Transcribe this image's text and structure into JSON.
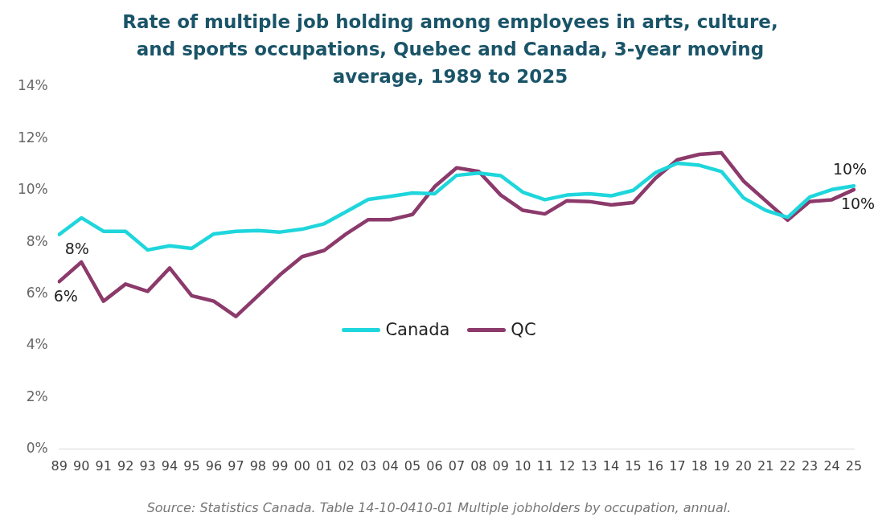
{
  "chart_data": {
    "type": "line",
    "title": "Rate of multiple job holding among employees in arts, culture, and sports occupations, Quebec and Canada, 3-year moving average, 1989 to 2025",
    "categories": [
      "89",
      "90",
      "91",
      "92",
      "93",
      "94",
      "95",
      "96",
      "97",
      "98",
      "99",
      "00",
      "01",
      "02",
      "03",
      "04",
      "05",
      "06",
      "07",
      "08",
      "09",
      "10",
      "11",
      "12",
      "13",
      "14",
      "15",
      "16",
      "17",
      "18",
      "19",
      "20",
      "21",
      "22",
      "23",
      "24",
      "25"
    ],
    "series": [
      {
        "name": "Canada",
        "color": "#1ed6dc",
        "values": [
          8.3,
          8.94,
          8.42,
          8.42,
          7.7,
          7.86,
          7.76,
          8.32,
          8.42,
          8.45,
          8.39,
          8.5,
          8.71,
          9.18,
          9.65,
          9.77,
          9.9,
          9.87,
          10.58,
          10.67,
          10.57,
          9.93,
          9.64,
          9.82,
          9.87,
          9.79,
          10.0,
          10.68,
          11.05,
          10.97,
          10.73,
          9.71,
          9.23,
          8.96,
          9.74,
          10.03,
          10.17
        ],
        "value_labels": [
          "8%",
          null,
          null,
          null,
          null,
          null,
          null,
          null,
          null,
          null,
          null,
          null,
          null,
          null,
          null,
          null,
          null,
          null,
          null,
          null,
          null,
          null,
          null,
          null,
          null,
          null,
          null,
          null,
          null,
          null,
          null,
          null,
          null,
          null,
          null,
          null,
          "10%"
        ]
      },
      {
        "name": "QC",
        "color": "#8b3a6b",
        "values": [
          6.48,
          7.23,
          5.72,
          6.38,
          6.1,
          7.0,
          5.93,
          5.72,
          5.13,
          5.93,
          6.74,
          7.44,
          7.68,
          8.32,
          8.87,
          8.87,
          9.07,
          10.14,
          10.87,
          10.73,
          9.82,
          9.23,
          9.09,
          9.6,
          9.57,
          9.44,
          9.53,
          10.46,
          11.18,
          11.39,
          11.45,
          10.36,
          9.6,
          8.85,
          9.57,
          9.64,
          10.03
        ],
        "value_labels": [
          "6%",
          null,
          null,
          null,
          null,
          null,
          null,
          null,
          null,
          null,
          null,
          null,
          null,
          null,
          null,
          null,
          null,
          null,
          null,
          null,
          null,
          null,
          null,
          null,
          null,
          null,
          null,
          null,
          null,
          null,
          null,
          null,
          null,
          null,
          null,
          null,
          "10%"
        ]
      }
    ],
    "ylim": [
      0,
      14
    ],
    "yticks": [
      {
        "value": 0,
        "label": "0%"
      },
      {
        "value": 2,
        "label": "2%"
      },
      {
        "value": 4,
        "label": "4%"
      },
      {
        "value": 6,
        "label": "6%"
      },
      {
        "value": 8,
        "label": "8%"
      },
      {
        "value": 10,
        "label": "10%"
      },
      {
        "value": 12,
        "label": "12%"
      },
      {
        "value": 14,
        "label": "14%"
      }
    ],
    "grid": false,
    "legend": "center",
    "marker": "none",
    "line_style": "solid",
    "annotations": [
      "Source: Statistics Canada. Table 14-10-0410-01  Multiple jobholders by occupation, annual."
    ]
  }
}
